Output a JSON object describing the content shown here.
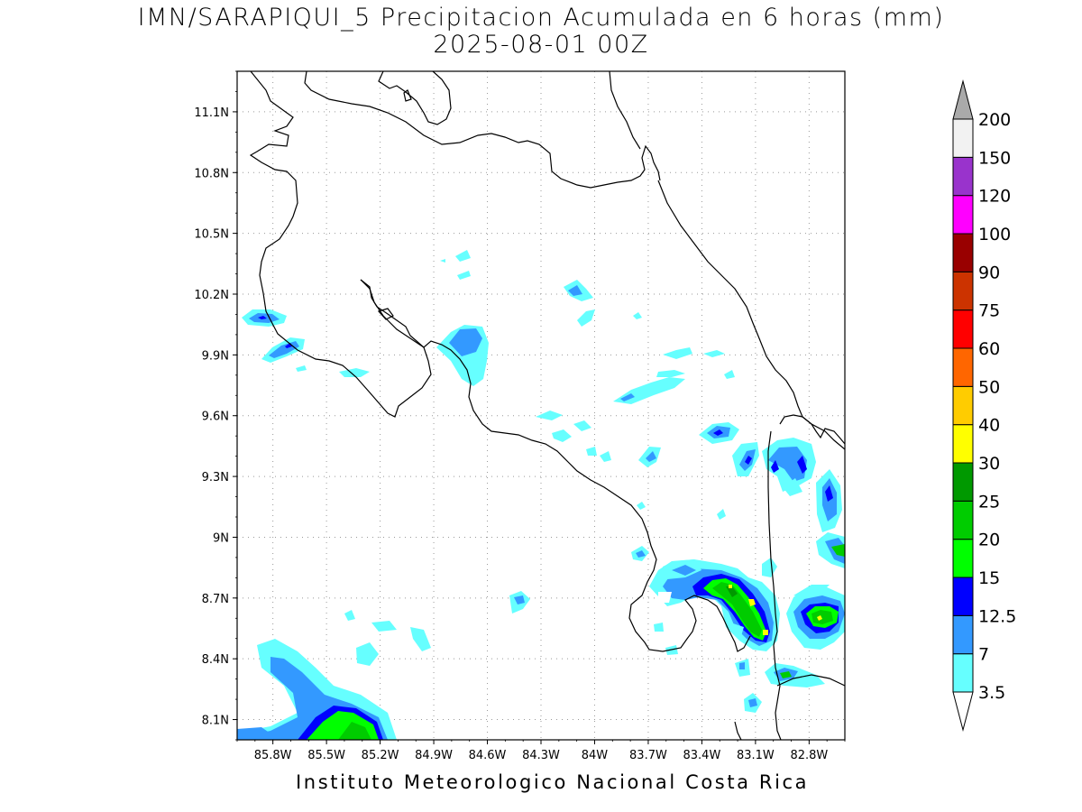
{
  "title": {
    "line1": "IMN/SARAPIQUI_5 Precipitacion Acumulada en 6 horas (mm)",
    "line2": "2025-08-01 00Z"
  },
  "footer": "Instituto Meteorologico Nacional Costa Rica",
  "map": {
    "lon_range": [
      -86.0,
      -82.6
    ],
    "lat_range": [
      8.0,
      11.3
    ],
    "x_ticks": [
      "85.8W",
      "85.5W",
      "85.2W",
      "84.9W",
      "84.6W",
      "84.3W",
      "84W",
      "83.7W",
      "83.4W",
      "83.1W",
      "82.8W"
    ],
    "x_tick_values": [
      -85.8,
      -85.5,
      -85.2,
      -84.9,
      -84.6,
      -84.3,
      -84.0,
      -83.7,
      -83.4,
      -83.1,
      -82.8
    ],
    "y_ticks": [
      "11.1N",
      "10.8N",
      "10.5N",
      "10.2N",
      "9.9N",
      "9.6N",
      "9.3N",
      "9N",
      "8.7N",
      "8.4N",
      "8.1N"
    ],
    "y_tick_values": [
      11.1,
      10.8,
      10.5,
      10.2,
      9.9,
      9.6,
      9.3,
      9.0,
      8.7,
      8.4,
      8.1
    ],
    "grid": "dotted"
  },
  "legend": {
    "units": "mm",
    "levels": [
      "3.5",
      "7",
      "12.5",
      "15",
      "20",
      "25",
      "30",
      "40",
      "50",
      "60",
      "75",
      "90",
      "100",
      "120",
      "150",
      "200"
    ],
    "colors": [
      "#66ffff",
      "#3399ff",
      "#0000ff",
      "#00ff00",
      "#00cc00",
      "#009900",
      "#ffff00",
      "#ffcc00",
      "#ff6600",
      "#ff0000",
      "#cc3300",
      "#990000",
      "#ff00ff",
      "#9933cc",
      "#f2f2f2",
      "#aaaaaa"
    ],
    "under_color": "#ffffff",
    "over_color": "#aaaaaa"
  },
  "precip_fields": [
    {
      "name": "sw-corner-system",
      "lon": -85.45,
      "lat": 8.2,
      "peak_mm": 22
    },
    {
      "name": "osa-peninsula-system",
      "lon": -83.0,
      "lat": 8.6,
      "peak_mm": 45
    },
    {
      "name": "panama-border-system",
      "lon": -82.72,
      "lat": 8.63,
      "peak_mm": 22
    },
    {
      "name": "nicoya-west-cell",
      "lon": -85.75,
      "lat": 9.98,
      "peak_mm": 13
    },
    {
      "name": "gulf-nicoya-cell",
      "lon": -84.6,
      "lat": 9.98,
      "peak_mm": 10
    }
  ]
}
